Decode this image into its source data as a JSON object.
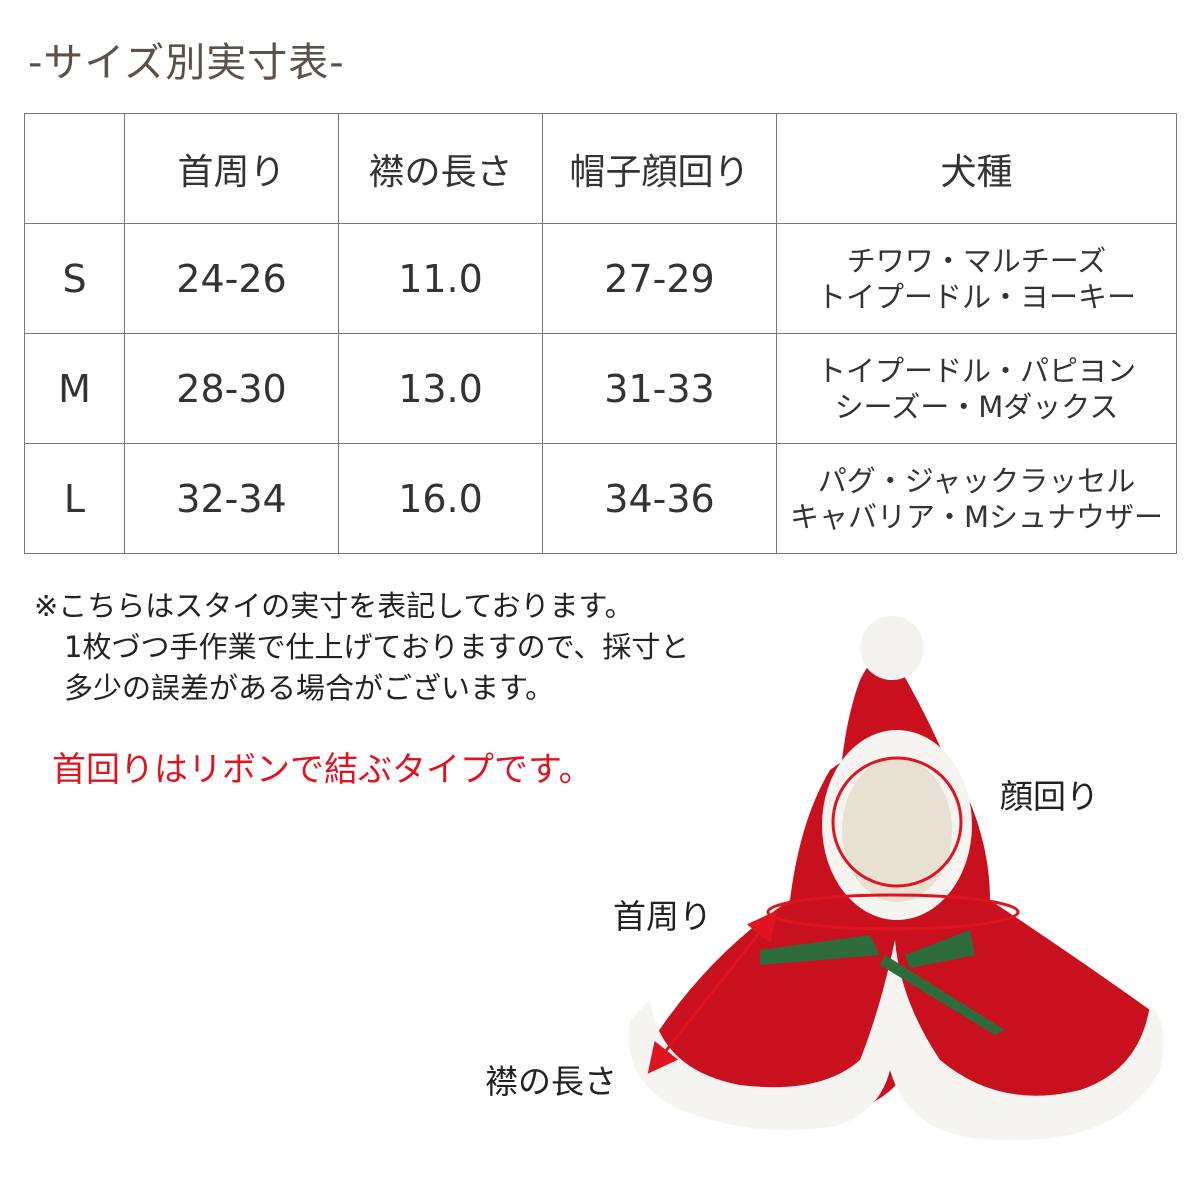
{
  "title": "-サイズ別実寸表-",
  "table": {
    "headers": [
      "",
      "首周り",
      "襟の長さ",
      "帽子顔回り",
      "犬種"
    ],
    "rows": [
      {
        "size": "S",
        "neck": "24-26",
        "collar": "11.0",
        "face": "27-29",
        "breeds": [
          "チワワ・マルチーズ",
          "トイプードル・ヨーキー"
        ]
      },
      {
        "size": "M",
        "neck": "28-30",
        "collar": "13.0",
        "face": "31-33",
        "breeds": [
          "トイプードル・パピヨン",
          "シーズー・Mダックス"
        ]
      },
      {
        "size": "L",
        "neck": "32-34",
        "collar": "16.0",
        "face": "34-36",
        "breeds": [
          "パグ・ジャックラッセル",
          "キャバリア・Mシュナウザー"
        ]
      }
    ]
  },
  "notes": [
    "※こちらはスタイの実寸を表記しております。",
    "1枚づつ手作業で仕上げておりますので、採寸と",
    "多少の誤差がある場合がございます。"
  ],
  "highlight": "首回りはリボンで結ぶタイプです。",
  "diagram_labels": {
    "face": "顔回り",
    "neck": "首周り",
    "collar": "襟の長さ"
  },
  "colors": {
    "title": "#5b5148",
    "highlight": "#e0141e",
    "cape": "#c8101e",
    "measure_line": "#e0141e"
  }
}
